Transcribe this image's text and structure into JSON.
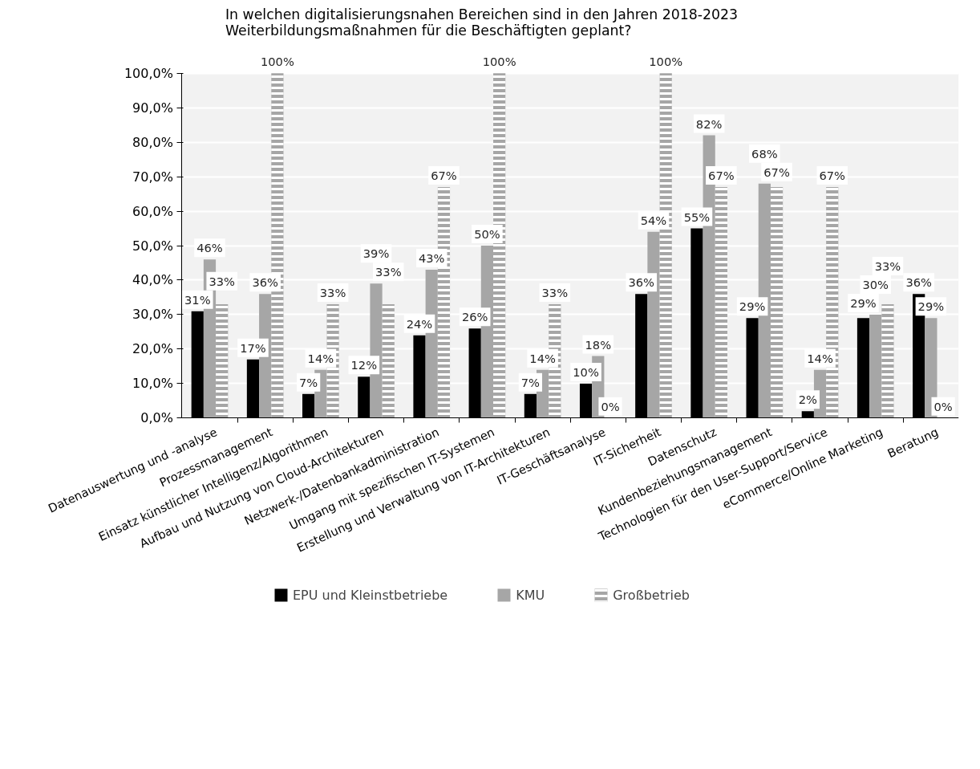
{
  "chart_data": {
    "type": "bar",
    "title": "In welchen digitalisierungsnahen Bereichen sind in den Jahren 2018-2023\nWeiterbildungsmaßnahmen für die Beschäftigten geplant?",
    "categories": [
      "Datenauswertung und -analyse",
      "Prozessmanagement",
      "Einsatz künstlicher Intelligenz/Algorithmen",
      "Aufbau und Nutzung von Cloud-Architekturen",
      "Netzwerk-/Datenbankadministration",
      "Umgang mit spezifischen IT-Systemen",
      "Erstellung und Verwaltung von IT-Architekturen",
      "IT-Geschäftsanalyse",
      "IT-Sicherheit",
      "Datenschutz",
      "Kundenbeziehungsmanagement",
      "Technologien für den User-Support/Service",
      "eCommerce/Online Marketing",
      "Beratung"
    ],
    "series": [
      {
        "name": "EPU und Kleinstbetriebe",
        "color": "#000000",
        "values": [
          31,
          17,
          7,
          12,
          24,
          26,
          7,
          10,
          36,
          55,
          29,
          2,
          29,
          36
        ],
        "value_labels": [
          "31%",
          "17%",
          "7%",
          "12%",
          "24%",
          "26%",
          "7%",
          "10%",
          "36%",
          "55%",
          "29%",
          "2%",
          "29%",
          "36%"
        ]
      },
      {
        "name": "KMU",
        "color": "#a6a6a6",
        "values": [
          46,
          36,
          14,
          39,
          43,
          50,
          14,
          18,
          54,
          82,
          68,
          14,
          30,
          29
        ],
        "value_labels": [
          "46%",
          "36%",
          "14%",
          "39%",
          "43%",
          "50%",
          "14%",
          "18%",
          "54%",
          "82%",
          "68%",
          "14%",
          "30%",
          "29%"
        ]
      },
      {
        "name": "Großbetrieb",
        "color": "#a6a6a6",
        "values": [
          33,
          100,
          33,
          33,
          67,
          100,
          33,
          0,
          100,
          67,
          67,
          67,
          33,
          0
        ],
        "value_labels": [
          "33%",
          "100%",
          "33%",
          "33%",
          "67%",
          "100%",
          "33%",
          "0%",
          "100%",
          "67%",
          "67%",
          "67%",
          "33%",
          "0%"
        ]
      }
    ],
    "ylim": [
      0,
      100
    ],
    "yticks": [
      {
        "value": 0,
        "label": "0,0%"
      },
      {
        "value": 10,
        "label": "10,0%"
      },
      {
        "value": 20,
        "label": "20,0%"
      },
      {
        "value": 30,
        "label": "30,0%"
      },
      {
        "value": 40,
        "label": "40,0%"
      },
      {
        "value": 50,
        "label": "50,0%"
      },
      {
        "value": 60,
        "label": "60,0%"
      },
      {
        "value": 70,
        "label": "70,0%"
      },
      {
        "value": 80,
        "label": "80,0%"
      },
      {
        "value": 90,
        "label": "90,0%"
      },
      {
        "value": 100,
        "label": "100,0%"
      }
    ],
    "grid": "y",
    "legend": "bottom"
  }
}
